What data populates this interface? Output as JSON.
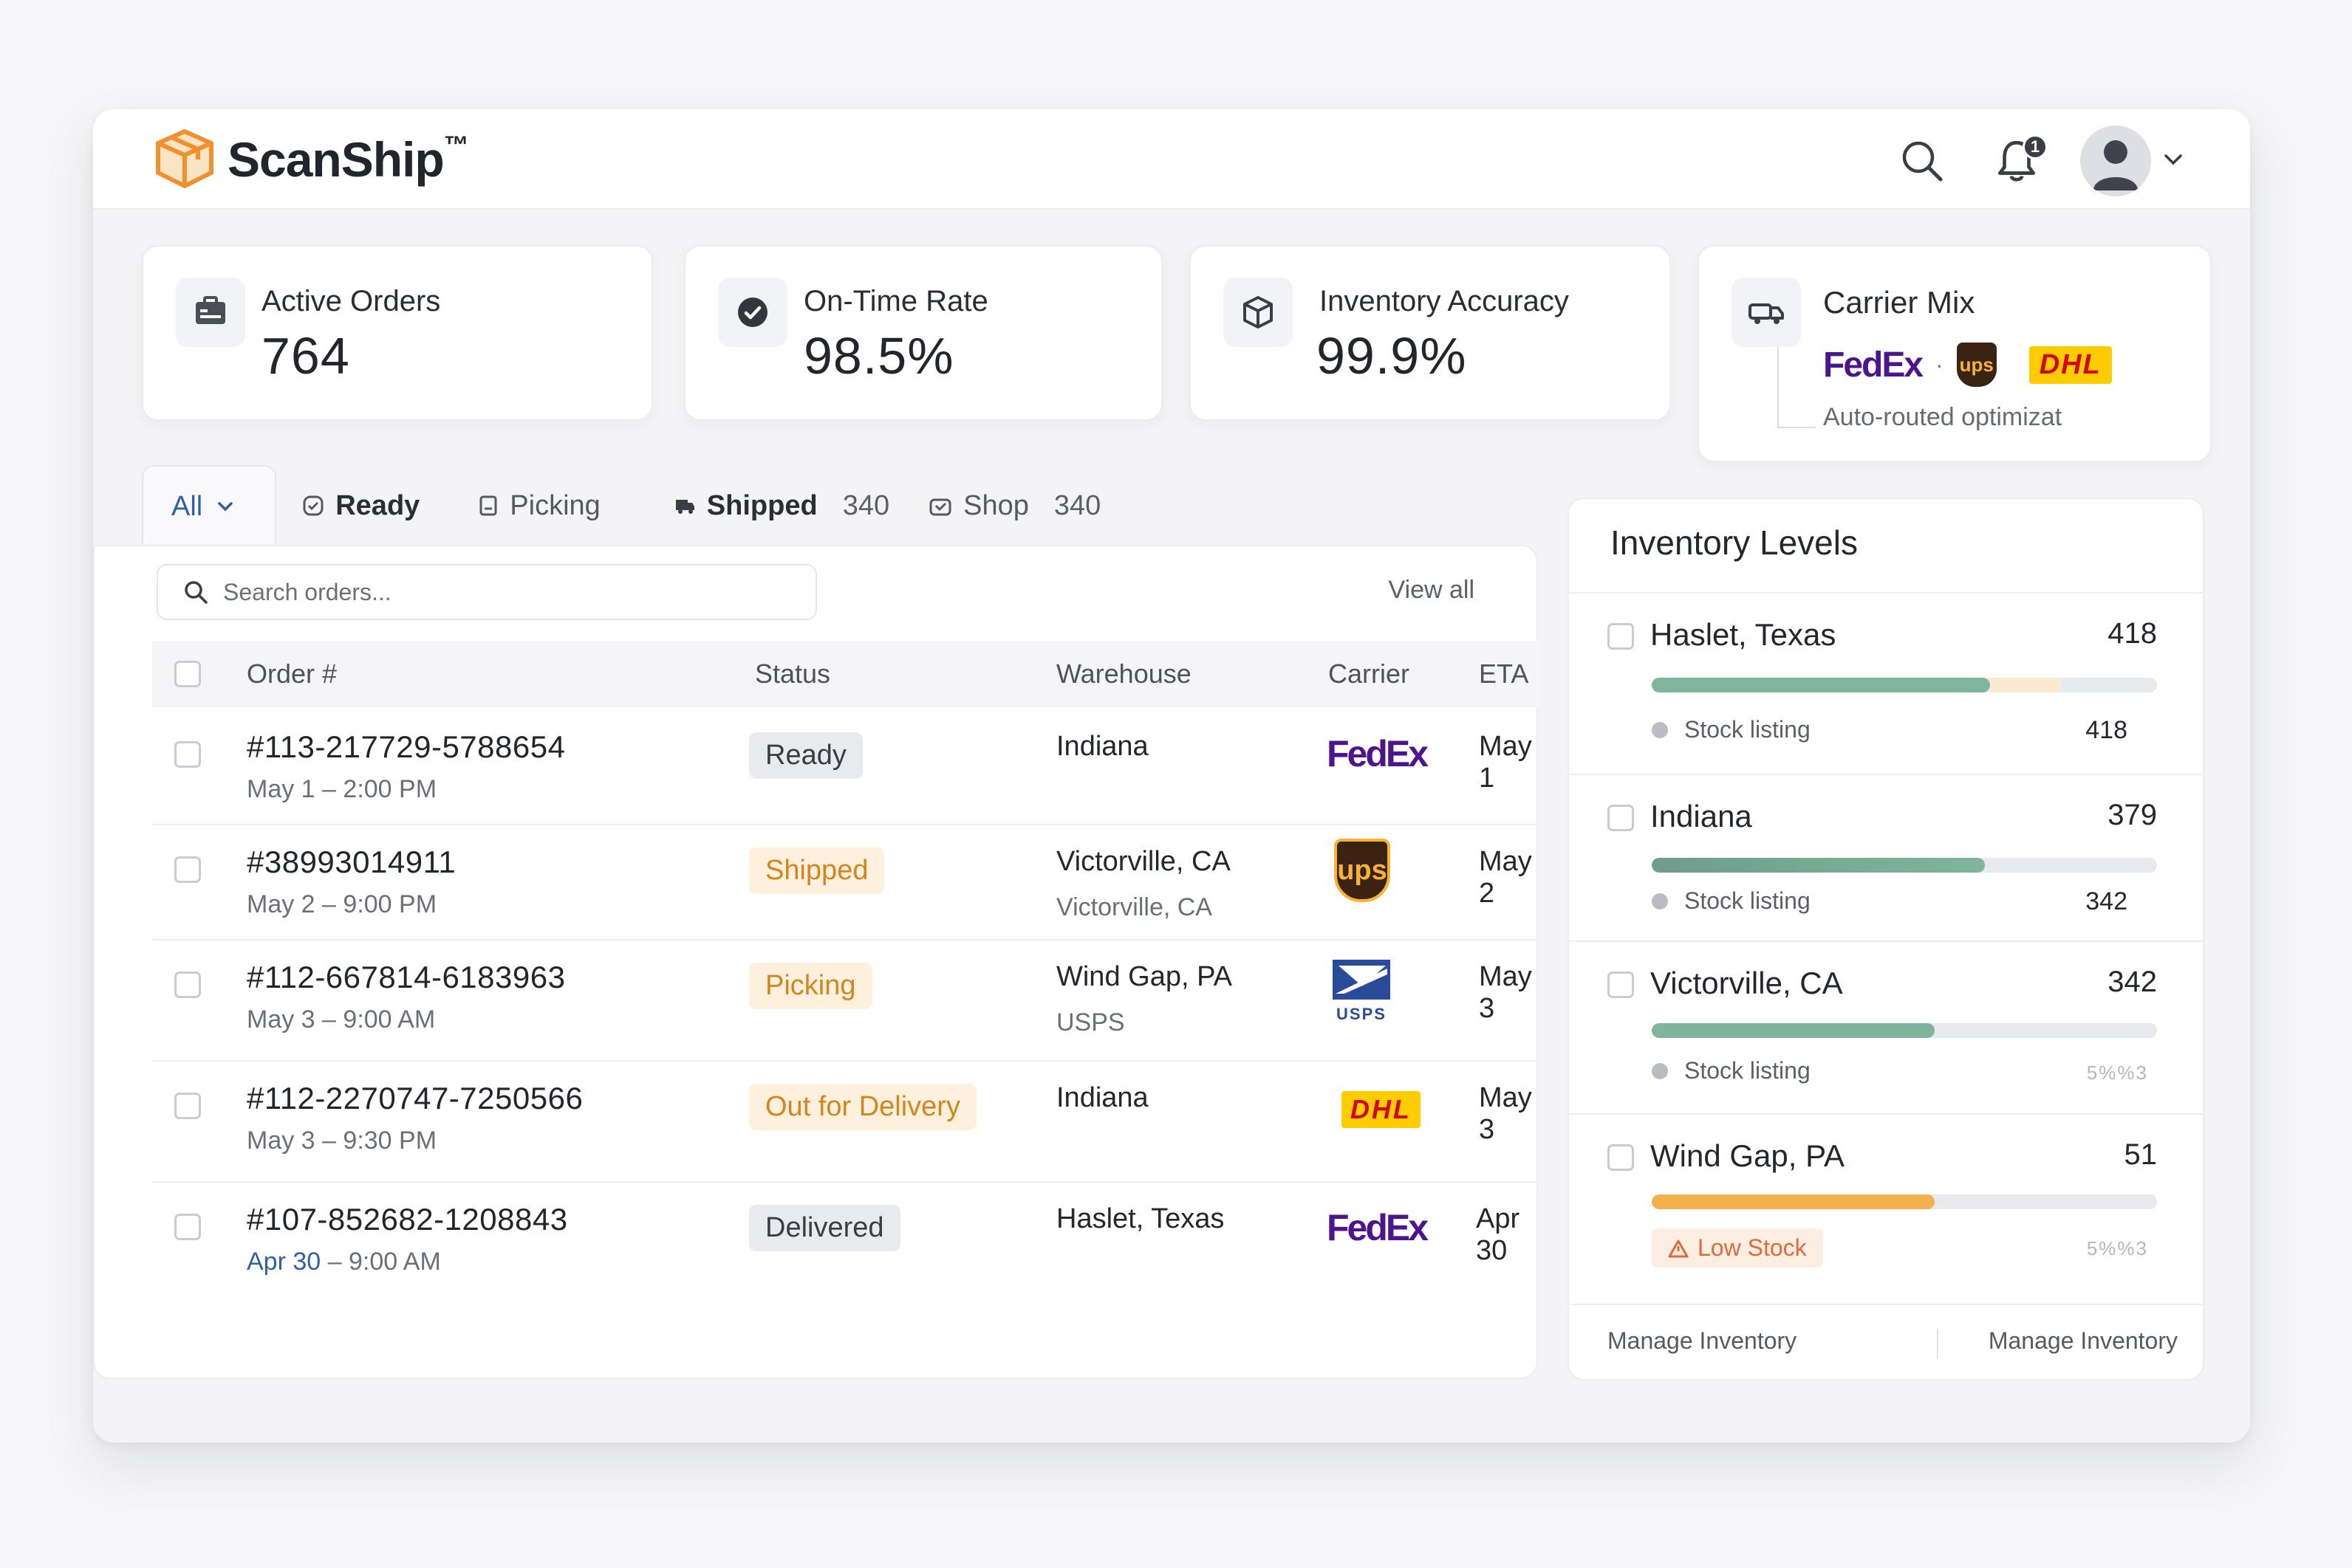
{
  "brand": {
    "name": "ScanShip",
    "tm": "™"
  },
  "header": {
    "notifications_count": "1",
    "icons": [
      "search-icon",
      "bell-icon",
      "avatar",
      "chevron-down-icon"
    ]
  },
  "kpis": [
    {
      "label": "Active Orders",
      "value": "764",
      "icon": "id-card-icon"
    },
    {
      "label": "On-Time Rate",
      "value": "98.5%",
      "icon": "check-circle-icon"
    },
    {
      "label": "Inventory Accuracy",
      "value": "99.9%",
      "icon": "box-icon"
    },
    {
      "label": "Carrier Mix",
      "carriers": [
        "FedEx",
        "ups",
        "DHL"
      ],
      "separator": "·",
      "subtitle": "Auto-routed optimizat",
      "icon": "truck-icon"
    }
  ],
  "tabs": [
    {
      "label": "All"
    },
    {
      "label": "Ready"
    },
    {
      "label": "Picking"
    },
    {
      "label": "Shipped",
      "count": "340"
    },
    {
      "label": "Shop",
      "count": "340"
    }
  ],
  "orders": {
    "search_placeholder": "Search orders...",
    "view_all": "View all",
    "columns": {
      "order": "Order #",
      "status": "Status",
      "warehouse": "Warehouse",
      "carrier": "Carrier",
      "eta": "ETA"
    },
    "rows": [
      {
        "id": "#113-217729-5788654",
        "date": "May 1",
        "sep": "–",
        "time": "2:00 PM",
        "status": "Ready",
        "warehouse": "Indiana",
        "warehouse_sub": "",
        "carrier": "FedEx",
        "eta": "May 1"
      },
      {
        "id": "#38993014911",
        "date": "May 2",
        "sep": "–",
        "time": "9:00 PM",
        "status": "Shipped",
        "warehouse": "Victorville, CA",
        "warehouse_sub": "Victorville, CA",
        "carrier": "ups",
        "eta": "May 2"
      },
      {
        "id": "#112-667814-6183963",
        "date": "May 3",
        "sep": "–",
        "time": "9:00 AM",
        "status": "Picking",
        "warehouse": "Wind Gap, PA",
        "warehouse_sub": "USPS",
        "carrier": "USPS",
        "eta": "May 3"
      },
      {
        "id": "#112-2270747-7250566",
        "date": "May 3",
        "sep": "–",
        "time": "9:30 PM",
        "status": "Out for Delivery",
        "warehouse": "Indiana",
        "warehouse_sub": "",
        "carrier": "DHL",
        "eta": "May 3"
      },
      {
        "id": "#107-852682-1208843",
        "date": "Apr 30",
        "sep": "–",
        "time": "9:00 AM",
        "status": "Delivered",
        "warehouse": "Haslet, Texas",
        "warehouse_sub": "",
        "carrier": "FedEx",
        "eta": "Apr 30"
      }
    ]
  },
  "inventory": {
    "title": "Inventory Levels",
    "items": [
      {
        "name": "Haslet, Texas",
        "value": "418",
        "sub_label": "Stock listing",
        "sub_value": "418",
        "level": 0.67,
        "color": "#7fb69b"
      },
      {
        "name": "Indiana",
        "value": "379",
        "sub_label": "Stock listing",
        "sub_value": "342",
        "level": 0.66,
        "color": "#7fb69b"
      },
      {
        "name": "Victorville, CA",
        "value": "342",
        "sub_label": "Stock listing",
        "sub_value": "5%%3",
        "level": 0.56,
        "color": "#7fb69b"
      },
      {
        "name": "Wind Gap, PA",
        "value": "51",
        "warning": "Low Stock",
        "sub_value": "5%%3",
        "level": 0.56,
        "color": "#f2b14d"
      }
    ],
    "footer_left": "Manage Inventory",
    "footer_right": "Manage Inventory"
  }
}
